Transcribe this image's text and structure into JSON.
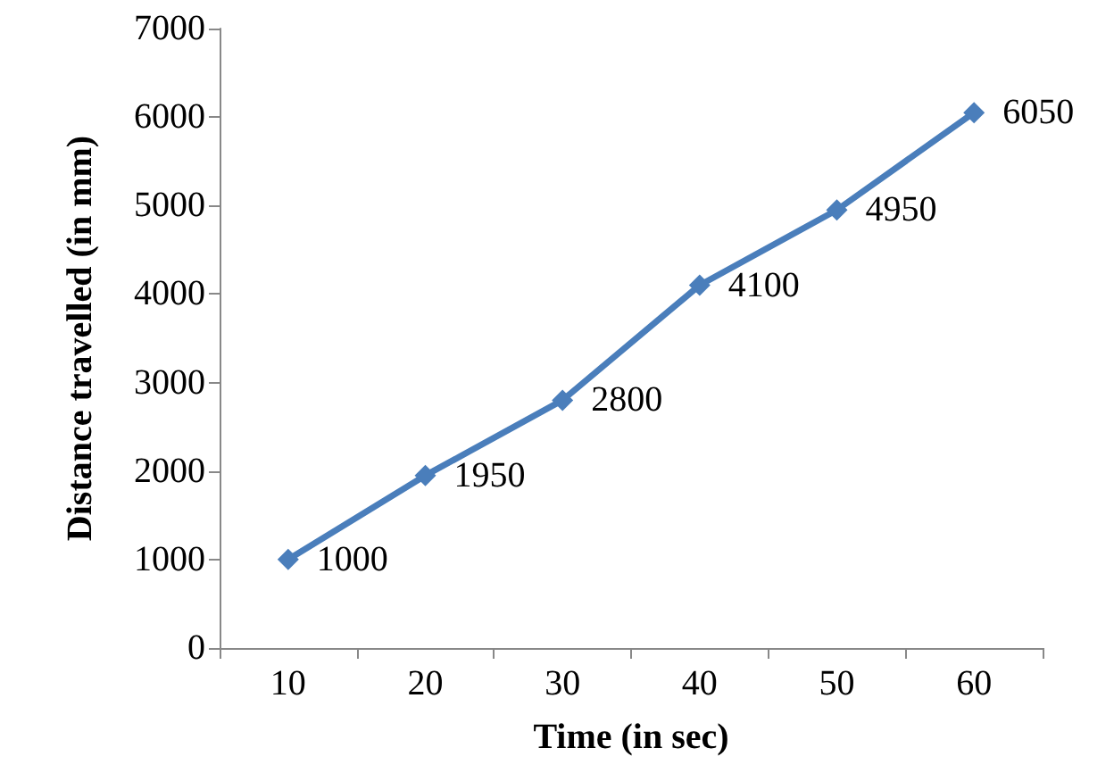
{
  "chart_data": {
    "type": "line",
    "xlabel": "Time (in sec)",
    "ylabel": "Distance travelled (in mm)",
    "categories": [
      "10",
      "20",
      "30",
      "40",
      "50",
      "60"
    ],
    "series": [
      {
        "color": "#4a7ebb",
        "values": [
          1000,
          1950,
          2800,
          4100,
          4950,
          6050
        ]
      }
    ],
    "ylim": [
      0,
      7000
    ],
    "yticks": [
      0,
      1000,
      2000,
      3000,
      4000,
      5000,
      6000,
      7000
    ],
    "grid": false,
    "marker": "diamond",
    "line_style": "solid",
    "data_labels": true
  }
}
